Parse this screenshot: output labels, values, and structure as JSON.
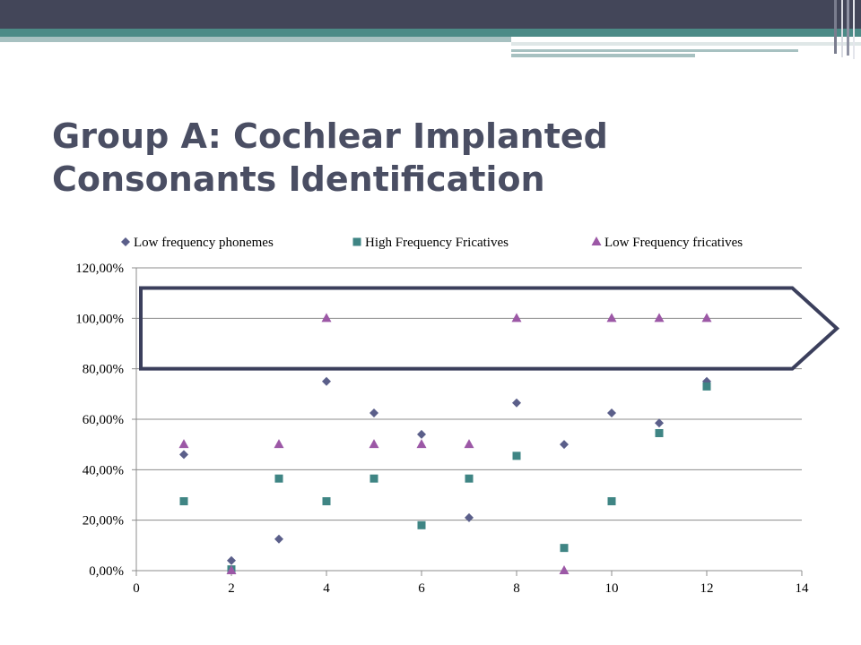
{
  "slide": {
    "title": "Group A: Cochlear Implanted Consonants Identification"
  },
  "colors": {
    "header_dark": "#434659",
    "header_teal": "#4c8b87",
    "header_light": "#a7c1c1",
    "title_text": "#4a4e63",
    "highlight_arrow": "#3b3f5c"
  },
  "chart_data": {
    "type": "scatter",
    "title": "",
    "xlabel": "",
    "ylabel": "",
    "xlim": [
      0,
      14
    ],
    "ylim": [
      0,
      1.2
    ],
    "x_ticks": [
      0,
      2,
      4,
      6,
      8,
      10,
      12,
      14
    ],
    "x_tick_labels": [
      "0",
      "2",
      "4",
      "6",
      "8",
      "10",
      "12",
      "14"
    ],
    "y_ticks": [
      0,
      0.2,
      0.4,
      0.6,
      0.8,
      1.0,
      1.2
    ],
    "y_tick_labels": [
      "0,00%",
      "20,00%",
      "40,00%",
      "60,00%",
      "80,00%",
      "100,00%",
      "120,00%"
    ],
    "grid": "horizontal",
    "legend_position": "top",
    "series": [
      {
        "name": "Low frequency phonemes",
        "marker": "diamond",
        "color": "#5b5f8a",
        "points": [
          [
            1,
            0.46
          ],
          [
            2,
            0.04
          ],
          [
            3,
            0.125
          ],
          [
            4,
            0.75
          ],
          [
            5,
            0.625
          ],
          [
            6,
            0.54
          ],
          [
            7,
            0.21
          ],
          [
            8,
            0.665
          ],
          [
            9,
            0.5
          ],
          [
            10,
            0.625
          ],
          [
            11,
            0.585
          ],
          [
            12,
            0.75
          ]
        ]
      },
      {
        "name": "High Frequency Fricatives",
        "marker": "square",
        "color": "#3f8584",
        "points": [
          [
            1,
            0.275
          ],
          [
            2,
            0.005
          ],
          [
            3,
            0.365
          ],
          [
            4,
            0.275
          ],
          [
            5,
            0.365
          ],
          [
            6,
            0.18
          ],
          [
            7,
            0.365
          ],
          [
            8,
            0.455
          ],
          [
            9,
            0.09
          ],
          [
            10,
            0.275
          ],
          [
            11,
            0.545
          ],
          [
            12,
            0.73
          ]
        ]
      },
      {
        "name": "Low Frequency fricatives",
        "marker": "triangle",
        "color": "#9c58a6",
        "points": [
          [
            1,
            0.5
          ],
          [
            2,
            0.0
          ],
          [
            3,
            0.5
          ],
          [
            4,
            1.0
          ],
          [
            5,
            0.5
          ],
          [
            6,
            0.5
          ],
          [
            7,
            0.5
          ],
          [
            8,
            1.0
          ],
          [
            9,
            0.0
          ],
          [
            10,
            1.0
          ],
          [
            11,
            1.0
          ],
          [
            12,
            1.0
          ]
        ]
      }
    ],
    "highlight_region": {
      "shape": "arrow",
      "x_from": 0,
      "x_to": 13.8,
      "x_tip": 14.7,
      "y_from": 0.8,
      "y_to": 1.12
    }
  }
}
